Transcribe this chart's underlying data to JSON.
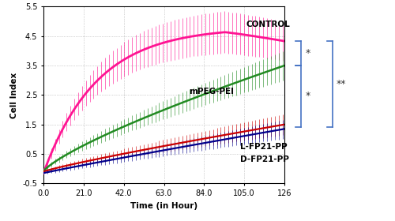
{
  "xlabel": "Time (in Hour)",
  "ylabel": "Cell Index",
  "xlim": [
    0,
    126
  ],
  "ylim": [
    -0.5,
    5.5
  ],
  "yticks": [
    -0.5,
    0.5,
    1.5,
    2.5,
    3.5,
    4.5,
    5.5
  ],
  "xticks": [
    0.0,
    21.0,
    42.0,
    63.0,
    84.0,
    105.0,
    126
  ],
  "xtick_labels": [
    "0.0",
    "21.0",
    "42.0",
    "63.0",
    "84.0",
    "105.0",
    "126"
  ],
  "ytick_labels": [
    "-0.5",
    "0.5",
    "1.5",
    "2.5",
    "3.5",
    "4.5",
    "5.5"
  ],
  "colors": {
    "CONTROL": "#FF1493",
    "mPEG-PEI": "#228B22",
    "L-FP21-PP": "#CC0000",
    "D-FP21-PP": "#00008B"
  },
  "n_points": 126,
  "time_end": 126,
  "ctrl_start": -0.15,
  "ctrl_peak": 4.8,
  "ctrl_peak_t": 95,
  "ctrl_end": 4.65,
  "mpeg_start": -0.1,
  "mpeg_end": 3.5,
  "lfp21_start": -0.1,
  "lfp21_end": 1.5,
  "dfp21_start": -0.15,
  "dfp21_end": 1.35,
  "bracket_color": "#4472C4",
  "label_fontsize": 7.5,
  "axis_fontsize": 7,
  "xlabel_fontsize": 7.5,
  "ylabel_fontsize": 7.5,
  "bg_color": "#FFFFFF"
}
